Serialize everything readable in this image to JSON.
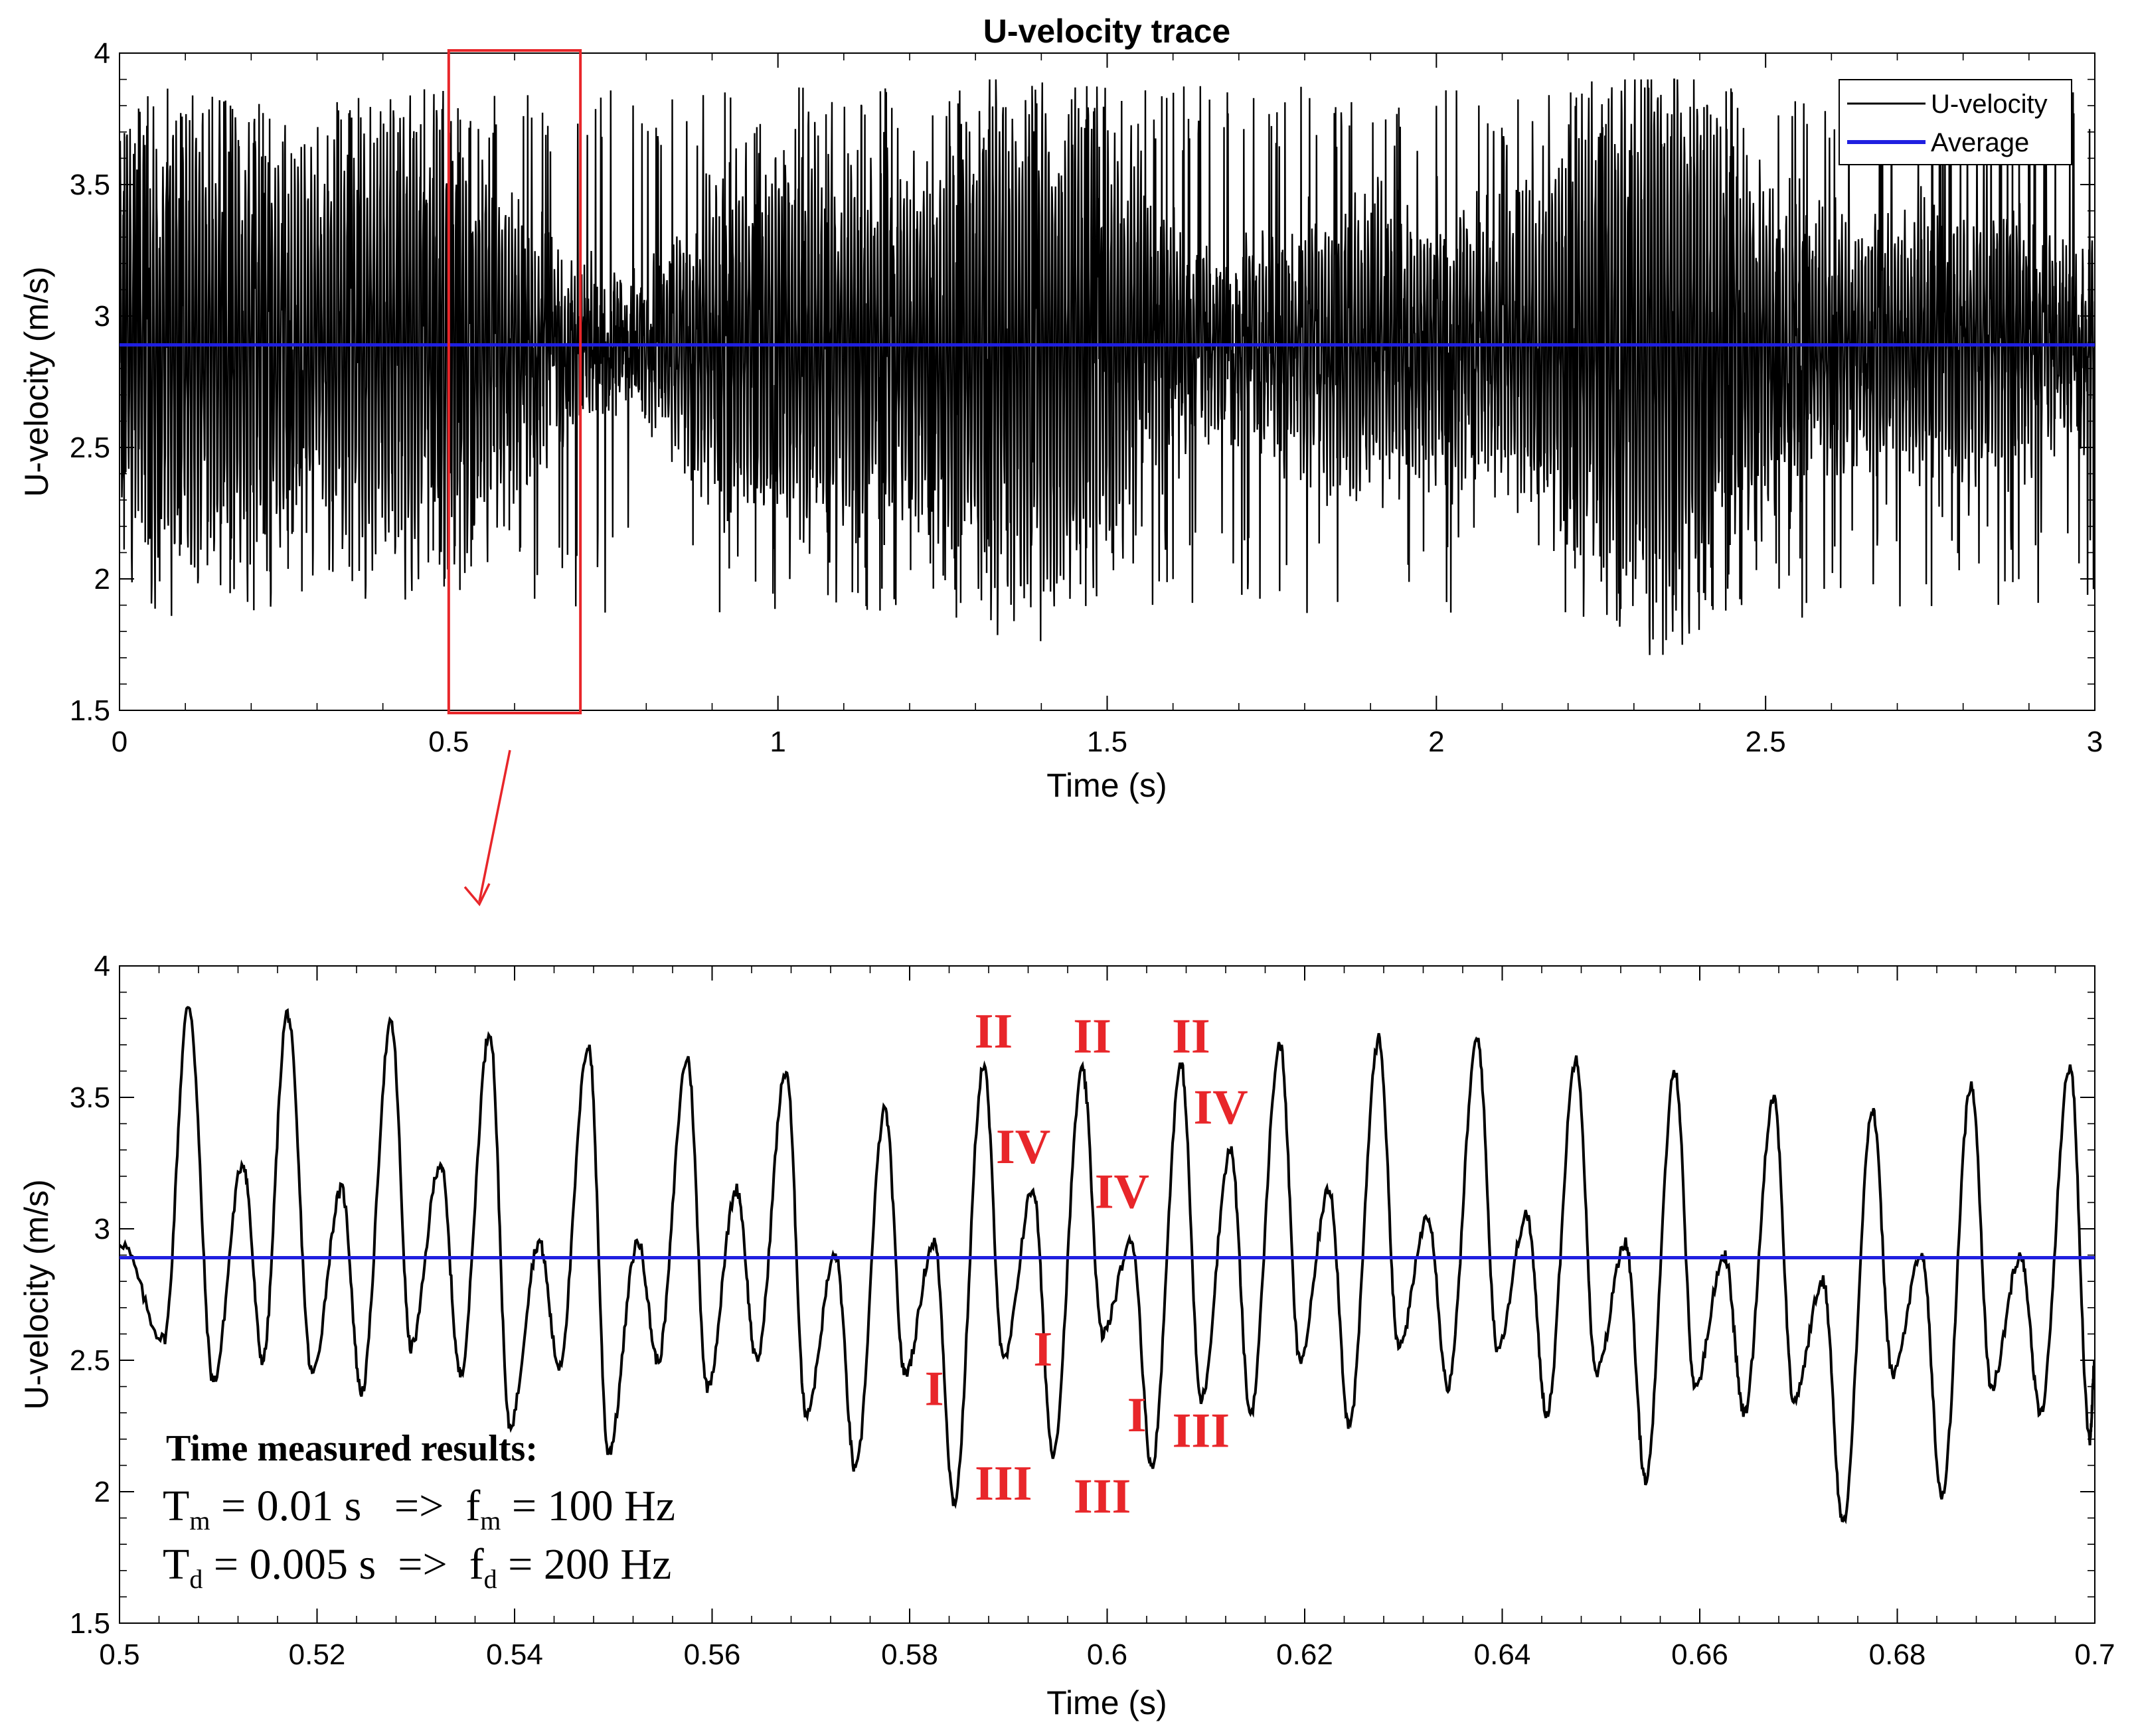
{
  "chart_data": [
    {
      "type": "line",
      "title": "U-velocity trace",
      "xlabel": "Time (s)",
      "ylabel": "U-velocity (m/s)",
      "xlim": [
        0,
        3
      ],
      "ylim": [
        1.5,
        4
      ],
      "xticks": [
        "0",
        "0.5",
        "1",
        "1.5",
        "2",
        "2.5",
        "3"
      ],
      "yticks": [
        "1.5",
        "2",
        "2.5",
        "3",
        "3.5",
        "4"
      ],
      "grid": false,
      "legend_position": "top-right",
      "series": [
        {
          "name": "U-velocity",
          "color": "#000000",
          "description_values": {
            "dominant_frequency_hz": 100,
            "typical_max": 3.75,
            "typical_min": 2.2,
            "overall_max": 3.9,
            "overall_min": 1.53
          }
        },
        {
          "name": "Average",
          "color": "#1f1fe0",
          "values": [
            2.89
          ]
        }
      ],
      "highlight_box": {
        "x_range": [
          0.5,
          0.7
        ],
        "y_range": [
          1.5,
          4
        ],
        "color": "#e8262a"
      }
    },
    {
      "type": "line",
      "xlabel": "Time (s)",
      "ylabel": "U-velocity (m/s)",
      "xlim": [
        0.5,
        0.7
      ],
      "ylim": [
        1.5,
        4
      ],
      "xticks": [
        "0.5",
        "0.52",
        "0.54",
        "0.56",
        "0.58",
        "0.6",
        "0.62",
        "0.64",
        "0.66",
        "0.68",
        "0.7"
      ],
      "yticks": [
        "1.5",
        "2",
        "2.5",
        "3",
        "3.5",
        "4"
      ],
      "grid": false,
      "series": [
        {
          "name": "U-velocity",
          "color": "#000000",
          "x": [
            0.5,
            0.5045,
            0.507,
            0.5095,
            0.5125,
            0.5145,
            0.517,
            0.5195,
            0.5225,
            0.5245,
            0.5275,
            0.5295,
            0.5325,
            0.5345,
            0.5375,
            0.5395,
            0.5425,
            0.5445,
            0.5475,
            0.5495,
            0.5525,
            0.5545,
            0.5575,
            0.5595,
            0.5625,
            0.5645,
            0.5675,
            0.5695,
            0.5725,
            0.5745,
            0.5775,
            0.5795,
            0.5825,
            0.5845,
            0.5875,
            0.5895,
            0.5925,
            0.5945,
            0.5975,
            0.5995,
            0.6025,
            0.6045,
            0.6075,
            0.6095,
            0.6125,
            0.6145,
            0.6175,
            0.6195,
            0.6225,
            0.6245,
            0.6275,
            0.6295,
            0.6325,
            0.6345,
            0.6375,
            0.6395,
            0.6425,
            0.6445,
            0.6475,
            0.6495,
            0.6525,
            0.6545,
            0.6575,
            0.6595,
            0.6625,
            0.6645,
            0.6675,
            0.6695,
            0.6725,
            0.6745,
            0.6775,
            0.6795,
            0.6825,
            0.6845,
            0.6875,
            0.6895,
            0.6925,
            0.6945,
            0.6975,
            0.6995,
            0.7
          ],
          "values": [
            2.95,
            2.58,
            3.85,
            2.42,
            3.25,
            2.5,
            3.82,
            2.45,
            3.15,
            2.38,
            3.78,
            2.55,
            3.25,
            2.45,
            3.75,
            2.25,
            2.95,
            2.48,
            3.7,
            2.15,
            2.95,
            2.5,
            3.65,
            2.4,
            3.15,
            2.5,
            3.6,
            2.3,
            2.9,
            2.08,
            3.45,
            2.45,
            2.95,
            1.96,
            3.62,
            2.5,
            3.15,
            2.15,
            3.6,
            2.6,
            2.95,
            2.1,
            3.62,
            2.35,
            3.3,
            2.3,
            3.7,
            2.5,
            3.15,
            2.25,
            3.72,
            2.55,
            3.05,
            2.4,
            3.72,
            2.55,
            3.05,
            2.3,
            3.65,
            2.45,
            2.95,
            2.05,
            3.6,
            2.4,
            2.9,
            2.3,
            3.5,
            2.35,
            2.8,
            1.88,
            3.45,
            2.45,
            2.9,
            1.98,
            3.55,
            2.4,
            2.9,
            2.3,
            3.62,
            2.2,
            2.5
          ]
        },
        {
          "name": "Average",
          "color": "#1f1fe0",
          "values": [
            2.89
          ]
        }
      ],
      "annotations": [
        {
          "text": "II",
          "x": 0.5885,
          "y": 3.69
        },
        {
          "text": "II",
          "x": 0.5985,
          "y": 3.67
        },
        {
          "text": "II",
          "x": 0.6085,
          "y": 3.67
        },
        {
          "text": "IV",
          "x": 0.5915,
          "y": 3.25
        },
        {
          "text": "IV",
          "x": 0.6015,
          "y": 3.08
        },
        {
          "text": "IV",
          "x": 0.6115,
          "y": 3.4
        },
        {
          "text": "I",
          "x": 0.5825,
          "y": 2.33
        },
        {
          "text": "I",
          "x": 0.5935,
          "y": 2.48
        },
        {
          "text": "I",
          "x": 0.603,
          "y": 2.23
        },
        {
          "text": "III",
          "x": 0.5895,
          "y": 1.97
        },
        {
          "text": "III",
          "x": 0.5995,
          "y": 1.92
        },
        {
          "text": "III",
          "x": 0.6095,
          "y": 2.17
        }
      ],
      "results_box": {
        "heading": "Time measured results:",
        "line1": {
          "T": "T",
          "T_sub": "m",
          "T_val": " = 0.01 s   =>  ",
          "f": "f",
          "f_sub": "m",
          "f_val": " = 100 Hz"
        },
        "line2": {
          "T": "T",
          "T_sub": "d",
          "T_val": " = 0.005 s  =>  ",
          "f": "f",
          "f_sub": "d",
          "f_val": " = 200 Hz"
        }
      }
    }
  ]
}
